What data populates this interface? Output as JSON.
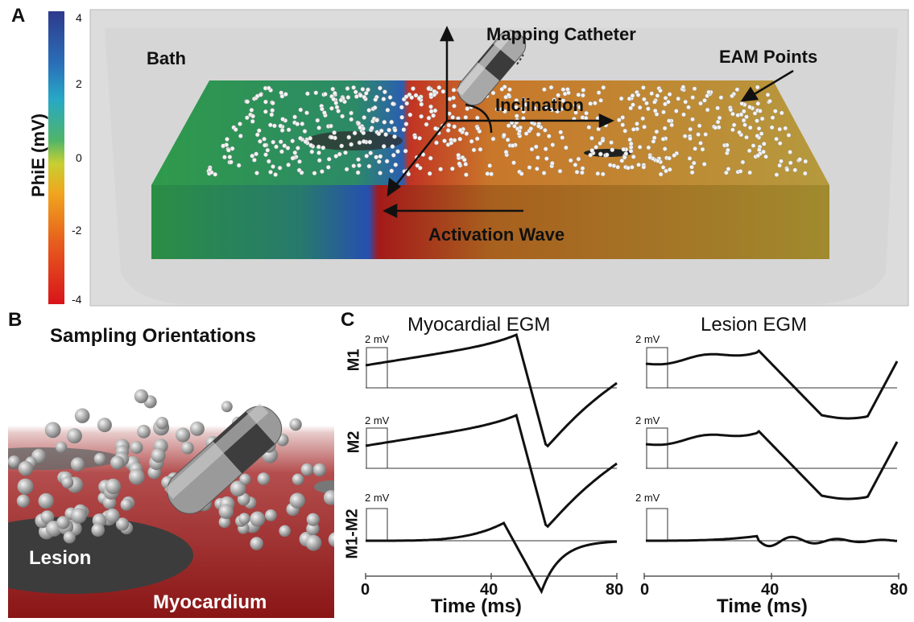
{
  "panel_letters": {
    "a": "A",
    "b": "B",
    "c": "C"
  },
  "colorbar": {
    "title": "PhiE (mV)",
    "ticks": [
      "4",
      "2",
      "0",
      "-2",
      "-4"
    ]
  },
  "panel_a": {
    "bath": "Bath",
    "mapping_catheter": "Mapping Catheter",
    "eam_points": "EAM Points",
    "inclination": "Inclination",
    "activation_wave": "Activation Wave"
  },
  "panel_b": {
    "title": "Sampling Orientations",
    "lesion": "Lesion",
    "myocardium": "Myocardium"
  },
  "panel_c": {
    "col_titles": [
      "Myocardial EGM",
      "Lesion EGM"
    ],
    "row_labels": [
      "M1",
      "M2",
      "M1-M2"
    ],
    "scale_label": "2 mV",
    "x_ticks": [
      "0",
      "40",
      "80"
    ],
    "x_label": "Time (ms)"
  },
  "colors": {
    "tissue_red": "#9c1f1c",
    "bath_gray": "#d8d8d8",
    "lesion_gray": "#3a3a3a",
    "trace": "#111111"
  }
}
